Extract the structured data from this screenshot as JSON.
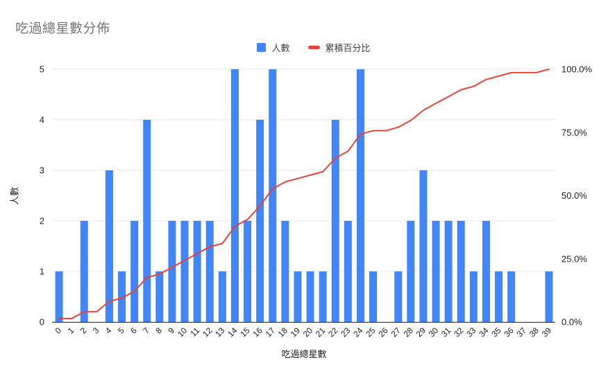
{
  "title": "吃過總星數分佈",
  "legend": {
    "items": [
      {
        "label": "人數",
        "marker": "square",
        "color": "#4285F4"
      },
      {
        "label": "累積百分比",
        "marker": "line",
        "color": "#EA4335"
      }
    ]
  },
  "chart_data": {
    "type": "bar",
    "subtype": "combo-bar-line",
    "title": "吃過總星數分佈",
    "xlabel": "吃過總星數",
    "ylabel": "人數",
    "categories": [
      "0",
      "1",
      "2",
      "3",
      "4",
      "5",
      "6",
      "7",
      "8",
      "9",
      "10",
      "11",
      "12",
      "13",
      "14",
      "15",
      "16",
      "17",
      "18",
      "19",
      "20",
      "21",
      "22",
      "23",
      "24",
      "25",
      "26",
      "27",
      "28",
      "29",
      "30",
      "31",
      "32",
      "33",
      "34",
      "35",
      "36",
      "37",
      "38",
      "39"
    ],
    "series": [
      {
        "name": "人數",
        "type": "bar",
        "axis": "left",
        "color": "#4285F4",
        "values": [
          1,
          0,
          2,
          0,
          3,
          1,
          2,
          4,
          1,
          2,
          2,
          2,
          2,
          1,
          5,
          2,
          4,
          5,
          2,
          1,
          1,
          1,
          4,
          2,
          5,
          1,
          0,
          1,
          2,
          3,
          2,
          2,
          2,
          1,
          2,
          1,
          1,
          0,
          0,
          1
        ]
      },
      {
        "name": "累積百分比",
        "type": "line",
        "axis": "right",
        "color": "#EA4335",
        "values": [
          1.35,
          1.35,
          4.05,
          4.05,
          8.11,
          9.46,
          12.16,
          17.57,
          18.92,
          21.62,
          24.32,
          27.03,
          29.73,
          31.08,
          37.84,
          40.54,
          45.95,
          52.7,
          55.41,
          56.76,
          58.11,
          59.46,
          64.86,
          67.57,
          74.32,
          75.68,
          75.68,
          77.03,
          79.73,
          83.78,
          86.49,
          89.19,
          91.89,
          93.24,
          95.95,
          97.3,
          98.65,
          98.65,
          98.65,
          100
        ]
      }
    ],
    "left_axis": {
      "title": "人數",
      "ticks": [
        0,
        1,
        2,
        3,
        4,
        5
      ],
      "range": [
        0,
        5
      ]
    },
    "right_axis": {
      "ticks": [
        "0.0%",
        "25.0%",
        "50.0%",
        "75.0%",
        "100.0%"
      ],
      "range": [
        0,
        100
      ]
    },
    "grid": true,
    "legend_position": "top"
  },
  "colors": {
    "bar": "#4285F4",
    "line": "#EA4335",
    "gridline": "#e6e6e6",
    "axis_line": "#202124",
    "tick_label": "#202124",
    "title": "#757575",
    "background": "#ffffff"
  }
}
